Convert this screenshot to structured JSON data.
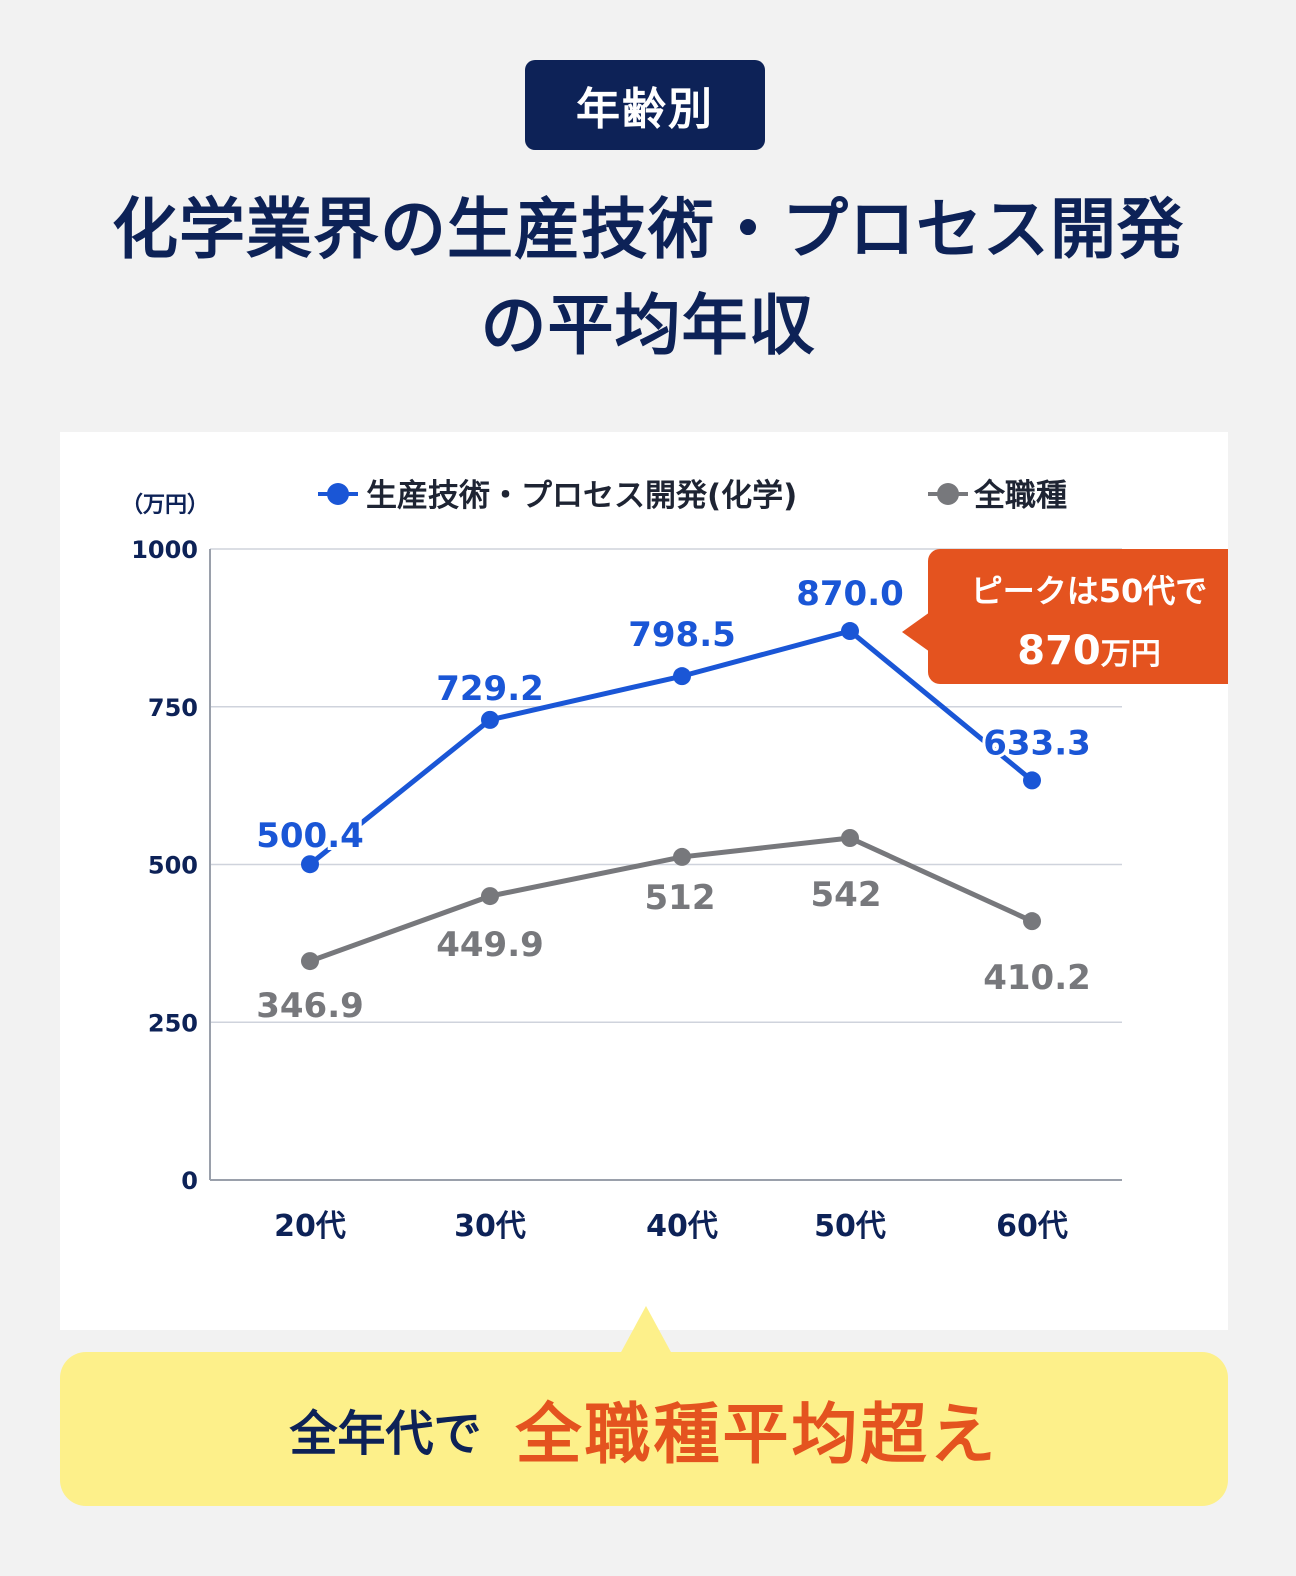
{
  "badge": "年齢別",
  "title_line1": "化学業界の生産技術・プロセス開発",
  "title_line2": "の平均年収",
  "chart_data": {
    "type": "line",
    "unit_label": "（万円）",
    "categories": [
      "20代",
      "30代",
      "40代",
      "50代",
      "60代"
    ],
    "ylim": [
      0,
      1000
    ],
    "yticks": [
      0,
      250,
      500,
      750,
      1000
    ],
    "grid": true,
    "legend_position": "top",
    "series": [
      {
        "name": "生産技術・プロセス開発(化学)",
        "color": "#1a56d6",
        "values": [
          500.4,
          729.2,
          798.5,
          870.0,
          633.3
        ],
        "labels": [
          "500.4",
          "729.2",
          "798.5",
          "870.0",
          "633.3"
        ]
      },
      {
        "name": "全職種",
        "color": "#77787c",
        "values": [
          346.9,
          449.9,
          512,
          542,
          410.2
        ],
        "labels": [
          "346.9",
          "449.9",
          "512",
          "542",
          "410.2"
        ]
      }
    ],
    "callout": {
      "line1": "ピークは50代で",
      "line2_number": "870",
      "line2_unit": "万円",
      "color": "#e4531f"
    }
  },
  "bottom_text_a": "全年代で",
  "bottom_text_b": "全職種平均超え"
}
